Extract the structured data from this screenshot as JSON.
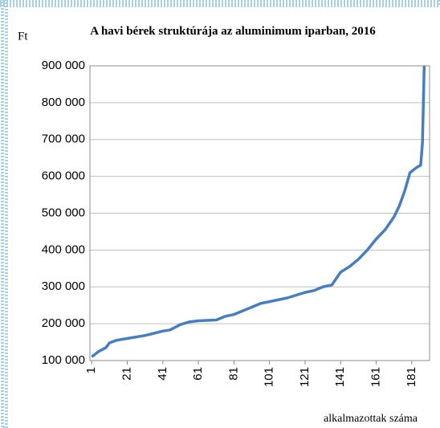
{
  "chart_data": {
    "type": "line",
    "title": "A havi bérek struktúrája az aluminimum iparban, 2016",
    "y_unit": "Ft",
    "xlabel": "alkalmazottak száma",
    "x": [
      1,
      5,
      9,
      11,
      15,
      21,
      31,
      41,
      45,
      51,
      56,
      61,
      71,
      76,
      81,
      91,
      96,
      101,
      111,
      121,
      126,
      131,
      136,
      141,
      146,
      151,
      156,
      161,
      166,
      171,
      174,
      177,
      180,
      184,
      186,
      187,
      188
    ],
    "series": [
      {
        "name": "Havi bér",
        "color": "#4a7ebb",
        "values": [
          110000,
          125000,
          135000,
          148000,
          155000,
          160000,
          168000,
          180000,
          183000,
          198000,
          205000,
          208000,
          210000,
          220000,
          225000,
          245000,
          255000,
          260000,
          270000,
          285000,
          290000,
          300000,
          305000,
          340000,
          355000,
          375000,
          400000,
          430000,
          455000,
          490000,
          520000,
          560000,
          610000,
          625000,
          630000,
          690000,
          900000
        ]
      }
    ],
    "xlim": [
      0,
      191
    ],
    "xticks": [
      1,
      21,
      41,
      61,
      81,
      101,
      121,
      141,
      161,
      181
    ],
    "ylim": [
      100000,
      900000
    ],
    "yticks": [
      {
        "value": 100000,
        "label": "100 000"
      },
      {
        "value": 200000,
        "label": "200 000"
      },
      {
        "value": 300000,
        "label": "300 000"
      },
      {
        "value": 400000,
        "label": "400 000"
      },
      {
        "value": 500000,
        "label": "500 000"
      },
      {
        "value": 600000,
        "label": "600 000"
      },
      {
        "value": 700000,
        "label": "700 000"
      },
      {
        "value": 800000,
        "label": "800 000"
      },
      {
        "value": 900000,
        "label": "900 000"
      }
    ],
    "grid": true
  }
}
